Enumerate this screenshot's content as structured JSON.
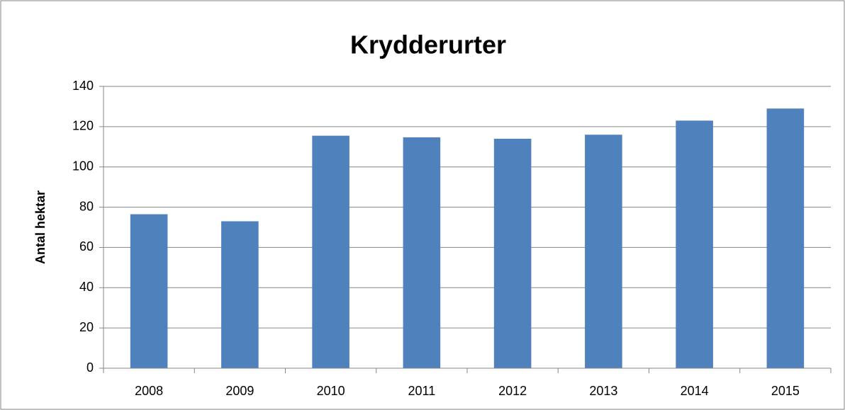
{
  "chart_data": {
    "type": "bar",
    "title": "Krydderurter",
    "y_label": "Antal hektar",
    "categories": [
      "2008",
      "2009",
      "2010",
      "2011",
      "2012",
      "2013",
      "2014",
      "2015"
    ],
    "values": [
      76.5,
      73,
      115.5,
      114.7,
      114,
      116,
      123,
      129
    ],
    "color": "#4f81bd",
    "ylim": [
      0,
      140
    ],
    "yticks": [
      0,
      20,
      40,
      60,
      80,
      100,
      120,
      140
    ],
    "grid": true
  }
}
